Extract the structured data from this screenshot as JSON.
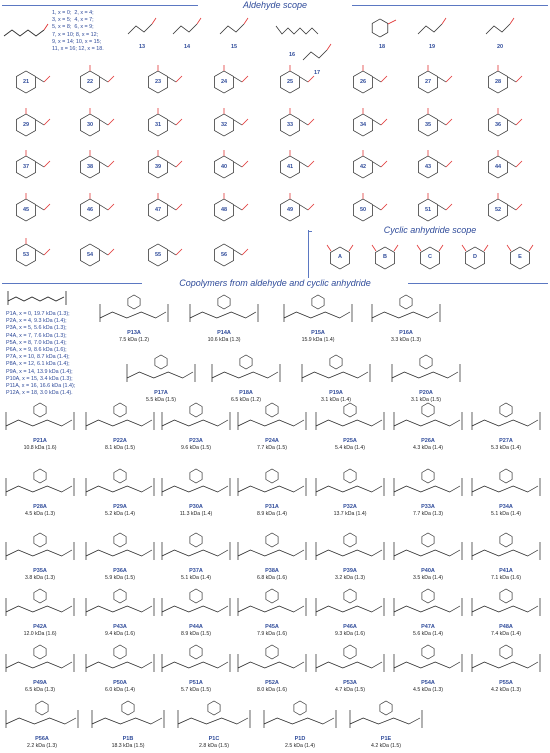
{
  "titles": {
    "aldehyde": "Aldehyde scope",
    "anhydride": "Cyclic anhydride scope",
    "copolymer": "Copolymers from aldehyde and cyclic anhydride"
  },
  "aldehyde_series": [
    "1, x = 0;  2, x = 4;",
    "3, x = 5;  4, x = 7;",
    "5, x = 8;  6, x = 9;",
    "7, x = 10; 8, x = 12;",
    "9, x = 14; 10, x = 15;",
    "11, x = 16; 12, x = 18."
  ],
  "aldehyde_ids": [
    "13",
    "14",
    "15",
    "16",
    "17",
    "18",
    "19",
    "20",
    "21",
    "22",
    "23",
    "24",
    "25",
    "26",
    "27",
    "28",
    "29",
    "30",
    "31",
    "32",
    "33",
    "34",
    "35",
    "36",
    "37",
    "38",
    "39",
    "40",
    "41",
    "42",
    "43",
    "44",
    "45",
    "46",
    "47",
    "48",
    "49",
    "50",
    "51",
    "52",
    "53",
    "54",
    "55",
    "56"
  ],
  "anhydrides": [
    "A",
    "B",
    "C",
    "D",
    "E"
  ],
  "polymer_series": [
    "P1A, x = 0, 19.7 kDa (1.3);",
    "P2A, x = 4, 9.3 kDa (1.4);",
    "P3A, x = 5, 5.6 kDa (1.3);",
    "P4A, x = 7, 7.6 kDa (1.3);",
    "P5A, x = 8, 7.0 kDa (1.4);",
    "P6A, x = 9, 8.6 kDa (1.6);",
    "P7A, x = 10, 8.7 kDa (1.4);",
    "P8A, x = 12, 6.1 kDa (1.4);",
    "P9A, x = 14, 13.9 kDa (1.4);",
    "P10A, x = 15, 3.4 kDa (1.3);",
    "P11A, x = 16, 16.6 kDa (1.4);",
    "P12A, x = 18, 3.0 kDa (1.4)."
  ],
  "polymers_top": [
    {
      "id": "P13A",
      "mw": "7.5 kDa (1.2)"
    },
    {
      "id": "P14A",
      "mw": "10.6 kDa (1.3)"
    },
    {
      "id": "P15A",
      "mw": "15.9 kDa (1.4)"
    },
    {
      "id": "P16A",
      "mw": "3.3 kDa (1.3)"
    },
    {
      "id": "P17A",
      "mw": "5.5 kDa (1.5)"
    },
    {
      "id": "P18A",
      "mw": "6.5 kDa (1.2)"
    },
    {
      "id": "P19A",
      "mw": "3.1 kDa (1.4)"
    },
    {
      "id": "P20A",
      "mw": "3.1 kDa (1.5)"
    }
  ],
  "polymer_rows": [
    [
      {
        "id": "P21A",
        "mw": "10.8 kDa (1.6)"
      },
      {
        "id": "P22A",
        "mw": "8.1 kDa (1.5)"
      },
      {
        "id": "P23A",
        "mw": "9.6 kDa (1.5)"
      },
      {
        "id": "P24A",
        "mw": "7.7 kDa (1.5)"
      },
      {
        "id": "P25A",
        "mw": "5.4 kDa (1.4)"
      },
      {
        "id": "P26A",
        "mw": "4.3 kDa (1.4)"
      },
      {
        "id": "P27A",
        "mw": "5.3 kDa (1.4)"
      }
    ],
    [
      {
        "id": "P28A",
        "mw": "4.5 kDa (1.3)"
      },
      {
        "id": "P29A",
        "mw": "5.2 kDa (1.4)"
      },
      {
        "id": "P30A",
        "mw": "11.3 kDa (1.4)"
      },
      {
        "id": "P31A",
        "mw": "8.9 kDa (1.4)"
      },
      {
        "id": "P32A",
        "mw": "13.7 kDa (1.4)"
      },
      {
        "id": "P33A",
        "mw": "7.7 kDa (1.3)"
      },
      {
        "id": "P34A",
        "mw": "5.1 kDa (1.4)"
      }
    ],
    [
      {
        "id": "P35A",
        "mw": "3.8 kDa (1.3)"
      },
      {
        "id": "P36A",
        "mw": "5.9 kDa (1.5)"
      },
      {
        "id": "P37A",
        "mw": "5.1 kDa (1.4)"
      },
      {
        "id": "P38A",
        "mw": "6.8 kDa (1.6)"
      },
      {
        "id": "P39A",
        "mw": "3.2 kDa (1.3)"
      },
      {
        "id": "P40A",
        "mw": "3.5 kDa (1.4)"
      },
      {
        "id": "P41A",
        "mw": "7.1 kDa (1.6)"
      }
    ],
    [
      {
        "id": "P42A",
        "mw": "12.0 kDa (1.6)"
      },
      {
        "id": "P43A",
        "mw": "9.4 kDa (1.6)"
      },
      {
        "id": "P44A",
        "mw": "8.9 kDa (1.5)"
      },
      {
        "id": "P45A",
        "mw": "7.9 kDa (1.6)"
      },
      {
        "id": "P46A",
        "mw": "9.3 kDa (1.6)"
      },
      {
        "id": "P47A",
        "mw": "5.6 kDa (1.4)"
      },
      {
        "id": "P48A",
        "mw": "7.4 kDa (1.4)"
      }
    ],
    [
      {
        "id": "P49A",
        "mw": "6.5 kDa (1.3)"
      },
      {
        "id": "P50A",
        "mw": "6.0 kDa (1.4)"
      },
      {
        "id": "P51A",
        "mw": "5.7 kDa (1.5)"
      },
      {
        "id": "P52A",
        "mw": "8.0 kDa (1.6)"
      },
      {
        "id": "P53A",
        "mw": "4.7 kDa (1.5)"
      },
      {
        "id": "P54A",
        "mw": "4.5 kDa (1.3)"
      },
      {
        "id": "P55A",
        "mw": "4.2 kDa (1.3)"
      }
    ]
  ],
  "polymers_bottom": [
    {
      "id": "P56A",
      "mw": "2.2 kDa (1.3)"
    },
    {
      "id": "P1B",
      "mw": "18.3 kDa (1.5)"
    },
    {
      "id": "P1C",
      "mw": "2.8 kDa (1.5)"
    },
    {
      "id": "P1D",
      "mw": "2.5 kDa (1.4)"
    },
    {
      "id": "P1E",
      "mw": "4.2 kDa (1.5)"
    }
  ]
}
